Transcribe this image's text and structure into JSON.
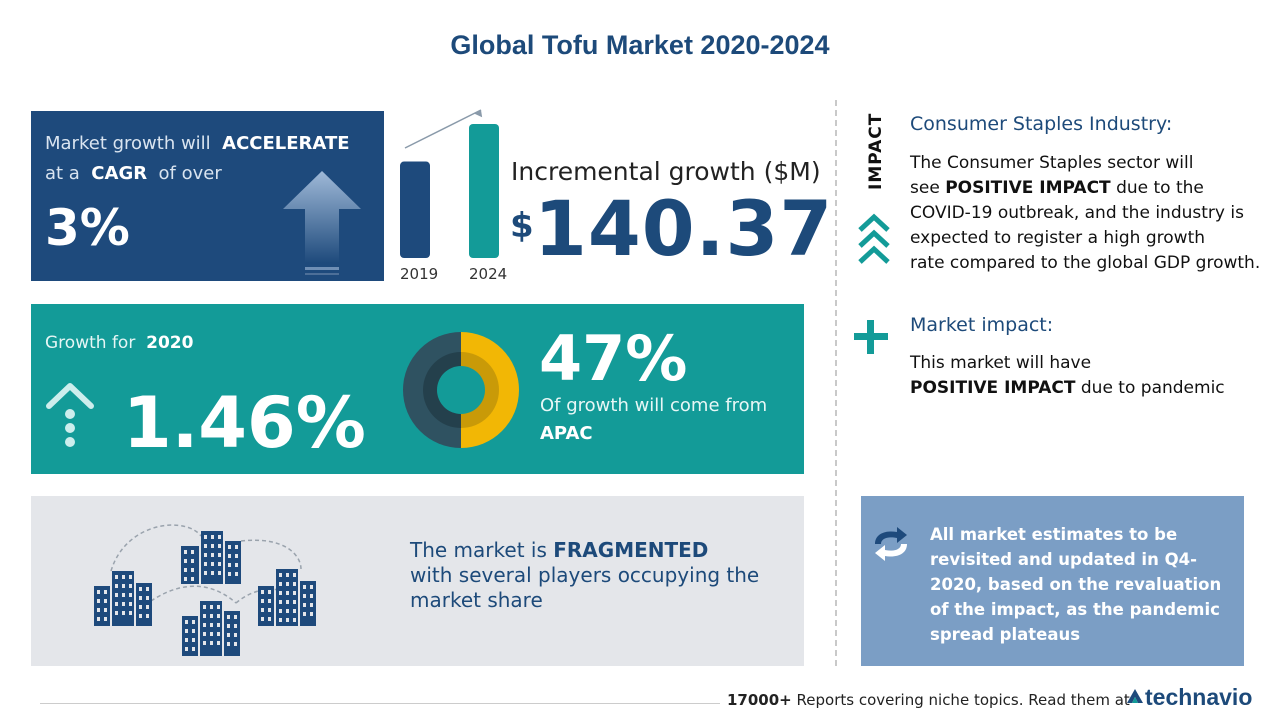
{
  "title": "Global Tofu Market 2020-2024",
  "cagr": {
    "line1_prefix": "Market growth will",
    "line1_emphasis": "ACCELERATE",
    "line2_prefix": "at a",
    "line2_emphasis": "CAGR",
    "line2_suffix": "of over",
    "value": "3%",
    "icon": "up-arrow-icon"
  },
  "incremental": {
    "label": "Incremental growth ($M)",
    "currency": "$",
    "value": "140.37",
    "bars": [
      {
        "year": "2019",
        "relative_value": 0.72,
        "color": "#1e4a7c"
      },
      {
        "year": "2024",
        "relative_value": 1.0,
        "color": "#139b98"
      }
    ]
  },
  "growth_2020": {
    "label_prefix": "Growth for",
    "label_year": "2020",
    "value": "1.46%",
    "icon": "growth-arrow-icon"
  },
  "region": {
    "share": "47%",
    "share_fraction": 0.47,
    "text": "Of growth will come from",
    "region": "APAC",
    "colors": {
      "highlight": "#f2b705",
      "rest": "#2f5261"
    }
  },
  "fragmented": {
    "prefix": "The market is",
    "emphasis": "FRAGMENTED",
    "line2": "with several players occupying the",
    "line3": "market share",
    "icon": "buildings-icon"
  },
  "impact": {
    "vertical_label": "IMPACT",
    "industry_heading": "Consumer Staples Industry:",
    "industry_line1": "The Consumer Staples sector will",
    "industry_line2_prefix": "see",
    "industry_line2_emphasis": "POSITIVE IMPACT",
    "industry_line2_suffix": "due to the",
    "industry_line3": "COVID-19 outbreak, and the industry is",
    "industry_line4": "expected to register a high growth",
    "industry_line5": "rate compared to the global GDP growth.",
    "industry_icon": "chevrons-up-icon",
    "market_heading": "Market impact:",
    "market_line1": "This market will have",
    "market_line2_emphasis": "POSITIVE IMPACT",
    "market_line2_suffix": "due to pandemic",
    "market_icon": "plus-icon"
  },
  "note": {
    "line1": "All market estimates to be",
    "line2": "revisited and updated in Q4-",
    "line3": "2020, based on the revaluation",
    "line4": "of the impact, as the pandemic",
    "line5": "spread plateaus",
    "icon": "refresh-arrows-icon"
  },
  "footer": {
    "count": "17000+",
    "text": "Reports covering niche topics. Read them at",
    "brand": "technavio"
  },
  "colors": {
    "navy": "#1e4a7c",
    "teal": "#139b98",
    "grey_box": "#e4e6ea",
    "note_box": "#7b9ec5"
  }
}
